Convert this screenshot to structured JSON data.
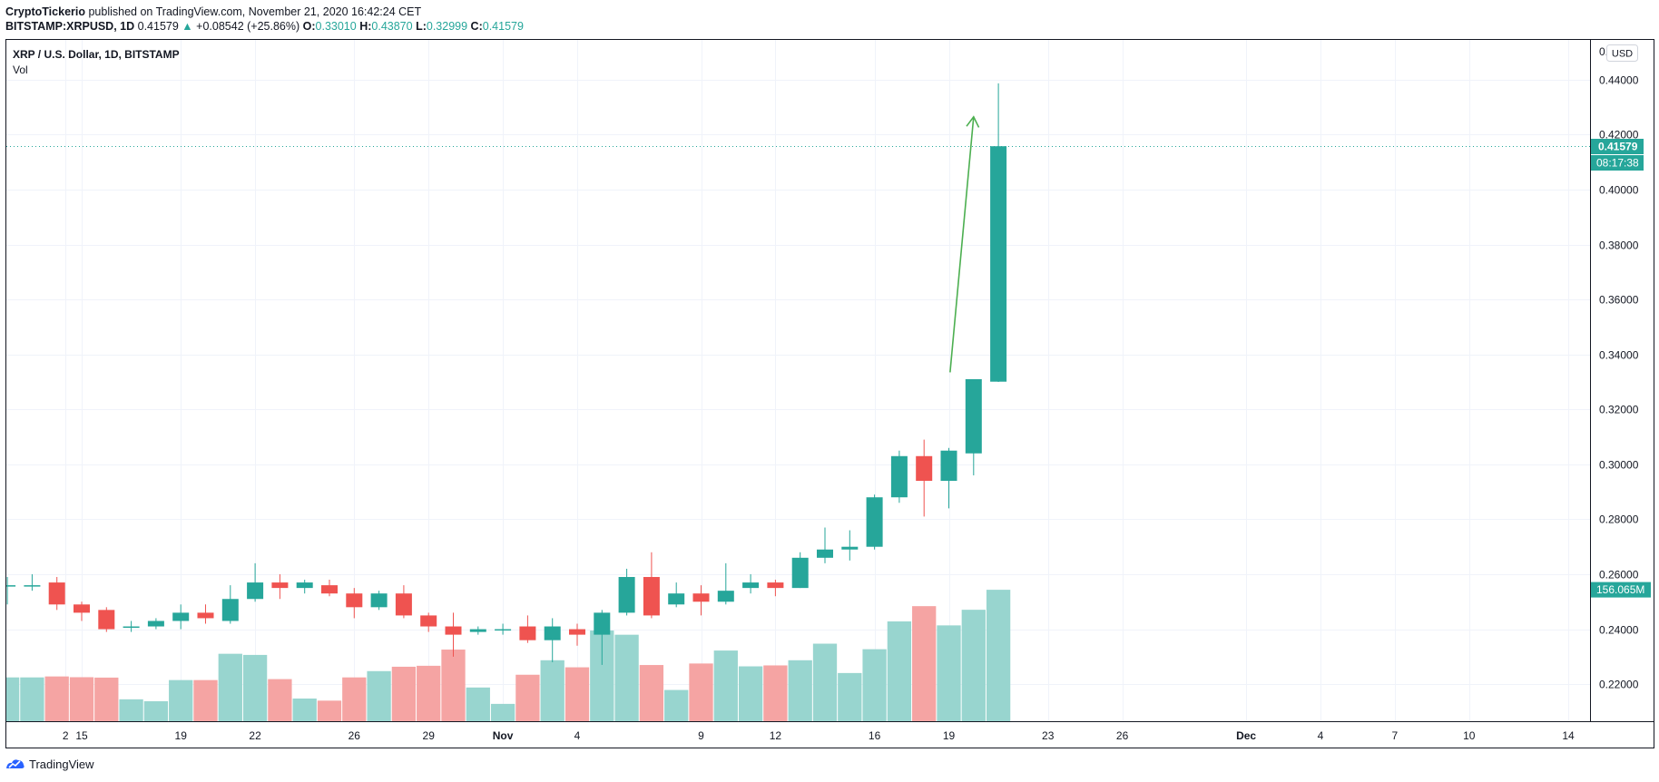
{
  "header": {
    "author": "CryptoTickerio",
    "published_text": "published on TradingView.com, November 21, 2020 16:42:24 CET",
    "symbol": "BITSTAMP:XRPUSD, 1D",
    "last": "0.41579",
    "arrow": "▲",
    "change": "+0.08542 (+25.86%)",
    "o_label": "O:",
    "o_val": "0.33010",
    "h_label": "H:",
    "h_val": "0.43870",
    "l_label": "L:",
    "l_val": "0.32999",
    "c_label": "C:",
    "c_val": "0.41579"
  },
  "legend": {
    "title": "XRP / U.S. Dollar, 1D, BITSTAMP",
    "vol": "Vol"
  },
  "price_axis": {
    "currency": "USD",
    "top_partial": "0.",
    "last_price": "0.41579",
    "countdown": "08:17:38",
    "volume_tag": "156.065M"
  },
  "footer": {
    "brand": "TradingView"
  },
  "colors": {
    "up": "#26a69a",
    "down": "#ef5350",
    "vol_up": "#98d5cf",
    "vol_down": "#f5a4a3",
    "grid": "#f0f3fa",
    "annotation": "#4caf50"
  },
  "chart_data": {
    "type": "candlestick",
    "title": "XRP / U.S. Dollar, 1D, BITSTAMP",
    "ylim": [
      0.2065,
      0.4545
    ],
    "yticks": [
      "0.44000",
      "0.42000",
      "0.40000",
      "0.38000",
      "0.36000",
      "0.34000",
      "0.32000",
      "0.30000",
      "0.28000",
      "0.26000",
      "0.24000",
      "0.22000"
    ],
    "ytick_values": [
      0.44,
      0.42,
      0.4,
      0.38,
      0.36,
      0.34,
      0.32,
      0.3,
      0.28,
      0.26,
      0.24,
      0.22
    ],
    "xlabels": [
      {
        "label": "2",
        "day": -0.65
      },
      {
        "label": "15",
        "day": 0
      },
      {
        "label": "19",
        "day": 4
      },
      {
        "label": "22",
        "day": 7
      },
      {
        "label": "26",
        "day": 11
      },
      {
        "label": "29",
        "day": 14
      },
      {
        "label": "Nov",
        "day": 17,
        "bold": true
      },
      {
        "label": "4",
        "day": 20
      },
      {
        "label": "9",
        "day": 25
      },
      {
        "label": "12",
        "day": 28
      },
      {
        "label": "16",
        "day": 32
      },
      {
        "label": "19",
        "day": 35
      },
      {
        "label": "23",
        "day": 39
      },
      {
        "label": "26",
        "day": 42
      },
      {
        "label": "Dec",
        "day": 47,
        "bold": true
      },
      {
        "label": "4",
        "day": 50
      },
      {
        "label": "7",
        "day": 53
      },
      {
        "label": "10",
        "day": 56
      },
      {
        "label": "14",
        "day": 60
      }
    ],
    "candles": [
      {
        "d": -3,
        "o": 0.256,
        "h": 0.259,
        "l": 0.249,
        "c": 0.256,
        "v": 23
      },
      {
        "d": -2,
        "o": 0.256,
        "h": 0.26,
        "l": 0.254,
        "c": 0.256,
        "v": 23
      },
      {
        "d": -1,
        "o": 0.257,
        "h": 0.259,
        "l": 0.247,
        "c": 0.249,
        "v": 23.5
      },
      {
        "d": 0,
        "o": 0.249,
        "h": 0.25,
        "l": 0.243,
        "c": 0.246,
        "v": 23.1
      },
      {
        "d": 1,
        "o": 0.247,
        "h": 0.248,
        "l": 0.239,
        "c": 0.24,
        "v": 22.9
      },
      {
        "d": 2,
        "o": 0.241,
        "h": 0.243,
        "l": 0.239,
        "c": 0.241,
        "v": 11.5
      },
      {
        "d": 3,
        "o": 0.241,
        "h": 0.244,
        "l": 0.24,
        "c": 0.243,
        "v": 10.5
      },
      {
        "d": 4,
        "o": 0.243,
        "h": 0.249,
        "l": 0.24,
        "c": 0.246,
        "v": 21.6
      },
      {
        "d": 5,
        "o": 0.246,
        "h": 0.249,
        "l": 0.242,
        "c": 0.244,
        "v": 21.6
      },
      {
        "d": 6,
        "o": 0.243,
        "h": 0.256,
        "l": 0.242,
        "c": 0.251,
        "v": 35.4
      },
      {
        "d": 7,
        "o": 0.251,
        "h": 0.264,
        "l": 0.25,
        "c": 0.257,
        "v": 34.8
      },
      {
        "d": 8,
        "o": 0.257,
        "h": 0.26,
        "l": 0.251,
        "c": 0.255,
        "v": 22.1
      },
      {
        "d": 9,
        "o": 0.255,
        "h": 0.258,
        "l": 0.253,
        "c": 0.257,
        "v": 11.9
      },
      {
        "d": 10,
        "o": 0.256,
        "h": 0.258,
        "l": 0.252,
        "c": 0.253,
        "v": 10.8
      },
      {
        "d": 11,
        "o": 0.253,
        "h": 0.255,
        "l": 0.244,
        "c": 0.248,
        "v": 23.0
      },
      {
        "d": 12,
        "o": 0.248,
        "h": 0.254,
        "l": 0.247,
        "c": 0.253,
        "v": 26.3
      },
      {
        "d": 13,
        "o": 0.253,
        "h": 0.256,
        "l": 0.244,
        "c": 0.245,
        "v": 28.6
      },
      {
        "d": 14,
        "o": 0.245,
        "h": 0.246,
        "l": 0.239,
        "c": 0.241,
        "v": 29.1
      },
      {
        "d": 15,
        "o": 0.241,
        "h": 0.246,
        "l": 0.23,
        "c": 0.238,
        "v": 37.6
      },
      {
        "d": 16,
        "o": 0.239,
        "h": 0.241,
        "l": 0.238,
        "c": 0.24,
        "v": 17.7
      },
      {
        "d": 17,
        "o": 0.24,
        "h": 0.242,
        "l": 0.238,
        "c": 0.24,
        "v": 9.1
      },
      {
        "d": 18,
        "o": 0.241,
        "h": 0.245,
        "l": 0.235,
        "c": 0.236,
        "v": 24.4
      },
      {
        "d": 19,
        "o": 0.236,
        "h": 0.244,
        "l": 0.228,
        "c": 0.241,
        "v": 32.0
      },
      {
        "d": 20,
        "o": 0.24,
        "h": 0.242,
        "l": 0.234,
        "c": 0.238,
        "v": 28.3
      },
      {
        "d": 21,
        "o": 0.238,
        "h": 0.247,
        "l": 0.227,
        "c": 0.246,
        "v": 47.6
      },
      {
        "d": 22,
        "o": 0.246,
        "h": 0.262,
        "l": 0.245,
        "c": 0.259,
        "v": 45.4
      },
      {
        "d": 23,
        "o": 0.259,
        "h": 0.268,
        "l": 0.244,
        "c": 0.245,
        "v": 29.5
      },
      {
        "d": 24,
        "o": 0.249,
        "h": 0.257,
        "l": 0.248,
        "c": 0.253,
        "v": 16.4
      },
      {
        "d": 25,
        "o": 0.253,
        "h": 0.256,
        "l": 0.245,
        "c": 0.25,
        "v": 30.3
      },
      {
        "d": 26,
        "o": 0.25,
        "h": 0.264,
        "l": 0.249,
        "c": 0.254,
        "v": 37.1
      },
      {
        "d": 27,
        "o": 0.255,
        "h": 0.26,
        "l": 0.253,
        "c": 0.257,
        "v": 28.8
      },
      {
        "d": 28,
        "o": 0.257,
        "h": 0.258,
        "l": 0.252,
        "c": 0.255,
        "v": 29.3
      },
      {
        "d": 29,
        "o": 0.255,
        "h": 0.268,
        "l": 0.255,
        "c": 0.266,
        "v": 32.0
      },
      {
        "d": 30,
        "o": 0.266,
        "h": 0.277,
        "l": 0.264,
        "c": 0.269,
        "v": 40.7
      },
      {
        "d": 31,
        "o": 0.269,
        "h": 0.276,
        "l": 0.265,
        "c": 0.27,
        "v": 25.3
      },
      {
        "d": 32,
        "o": 0.27,
        "h": 0.289,
        "l": 0.269,
        "c": 0.288,
        "v": 37.8
      },
      {
        "d": 33,
        "o": 0.288,
        "h": 0.305,
        "l": 0.286,
        "c": 0.303,
        "v": 52.4
      },
      {
        "d": 34,
        "o": 0.303,
        "h": 0.309,
        "l": 0.281,
        "c": 0.294,
        "v": 60.4
      },
      {
        "d": 35,
        "o": 0.294,
        "h": 0.306,
        "l": 0.284,
        "c": 0.305,
        "v": 50.3
      },
      {
        "d": 36,
        "o": 0.304,
        "h": 0.331,
        "l": 0.296,
        "c": 0.331,
        "v": 58.5
      },
      {
        "d": 37,
        "o": 0.3301,
        "h": 0.4387,
        "l": 0.33,
        "c": 0.4158,
        "v": 69.0
      }
    ],
    "arrow_annotation": {
      "from": {
        "d": 35.05,
        "price": 0.3335
      },
      "to": {
        "d": 36.0,
        "price": 0.4265
      }
    }
  }
}
